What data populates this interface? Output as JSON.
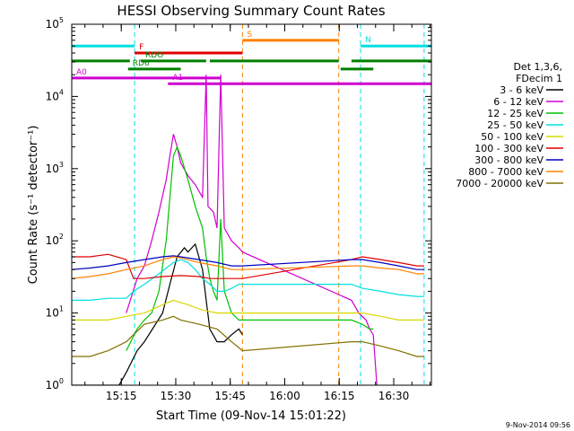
{
  "chart_data": {
    "type": "line",
    "title": "HESSI Observing Summary Count Rates",
    "xlabel": "Start Time (09-Nov-14 15:01:22)",
    "ylabel": "Count Rate (s⁻¹ detector⁻¹)",
    "yscale": "log",
    "xlim_min": [
      0,
      99
    ],
    "ylim": [
      1,
      100000
    ],
    "x_ticks": [
      {
        "min": 13.63,
        "label": "15:15"
      },
      {
        "min": 28.63,
        "label": "15:30"
      },
      {
        "min": 43.63,
        "label": "15:45"
      },
      {
        "min": 58.63,
        "label": "16:00"
      },
      {
        "min": 73.63,
        "label": "16:15"
      },
      {
        "min": 88.63,
        "label": "16:30"
      }
    ],
    "y_ticks": [
      {
        "value": 1,
        "base": "10",
        "exp": "0"
      },
      {
        "value": 10,
        "base": "10",
        "exp": "1"
      },
      {
        "value": 100,
        "base": "10",
        "exp": "2"
      },
      {
        "value": 1000,
        "base": "10",
        "exp": "3"
      },
      {
        "value": 10000,
        "base": "10",
        "exp": "4"
      },
      {
        "value": 100000,
        "base": "10",
        "exp": "5"
      }
    ],
    "legend": {
      "header": [
        "Det 1,3,6,",
        "FDecim 1"
      ],
      "placement": "right",
      "entries": [
        {
          "label": "3 - 6 keV",
          "color": "#000000"
        },
        {
          "label": "6 - 12 keV",
          "color": "#d000d0"
        },
        {
          "label": "12 - 25 keV",
          "color": "#00c000"
        },
        {
          "label": "25 - 50 keV",
          "color": "#00e0e0"
        },
        {
          "label": "50 - 100 keV",
          "color": "#d8d800"
        },
        {
          "label": "100 - 300 keV",
          "color": "#e00000"
        },
        {
          "label": "300 - 800 keV",
          "color": "#0000c0"
        },
        {
          "label": "800 - 7000 keV",
          "color": "#ff8000"
        },
        {
          "label": "7000 - 20000 keV",
          "color": "#807000"
        }
      ]
    },
    "flags": [
      {
        "label": "N",
        "y": 50000,
        "color": "#00e0e0",
        "segments": [
          [
            0,
            17.3
          ],
          [
            79.5,
            99
          ]
        ]
      },
      {
        "label": "S",
        "y": 60000,
        "color": "#ff8000",
        "segments": [
          [
            47,
            73.5
          ]
        ]
      },
      {
        "label": "F",
        "y": 40000,
        "color": "#e00000",
        "segments": [
          [
            17.3,
            47
          ]
        ]
      },
      {
        "label": "RDO",
        "y": 31000,
        "color": "#008000",
        "segments": [
          [
            0,
            16
          ],
          [
            19,
            37
          ],
          [
            38,
            73.5
          ],
          [
            77,
            99
          ]
        ]
      },
      {
        "label": "RD6",
        "y": 24000,
        "color": "#008000",
        "segments": [
          [
            15.5,
            30
          ],
          [
            74,
            83
          ]
        ]
      },
      {
        "label": "A0",
        "y": 18000,
        "color": "#d000d0",
        "segments": [
          [
            0,
            41
          ]
        ]
      },
      {
        "label": "A1",
        "y": 15000,
        "color": "#d000d0",
        "segments": [
          [
            26.5,
            99
          ]
        ]
      }
    ],
    "saa_lines_min": [
      17.3,
      47,
      73.5,
      79.5,
      97
    ],
    "night_lines_min": [
      15.5,
      79.5
    ],
    "series": [
      {
        "name": "3 - 6 keV",
        "color": "#000000",
        "points": [
          [
            0,
            1
          ],
          [
            10,
            1
          ],
          [
            13,
            1
          ],
          [
            15,
            1.5
          ],
          [
            18,
            3
          ],
          [
            20,
            4
          ],
          [
            25,
            10
          ],
          [
            27,
            25
          ],
          [
            29,
            60
          ],
          [
            31,
            80
          ],
          [
            32,
            70
          ],
          [
            34,
            90
          ],
          [
            36,
            40
          ],
          [
            37,
            15
          ],
          [
            38,
            6
          ],
          [
            40,
            4
          ],
          [
            42,
            4
          ],
          [
            44,
            5
          ],
          [
            46,
            6
          ],
          [
            47,
            5
          ]
        ]
      },
      {
        "name": "6 - 12 keV",
        "color": "#d000d0",
        "points": [
          [
            15,
            10
          ],
          [
            18,
            30
          ],
          [
            20,
            45
          ],
          [
            22,
            100
          ],
          [
            24,
            250
          ],
          [
            26,
            700
          ],
          [
            27,
            1500
          ],
          [
            28,
            3000
          ],
          [
            29,
            2000
          ],
          [
            30,
            1200
          ],
          [
            32,
            800
          ],
          [
            34,
            600
          ],
          [
            36,
            400
          ],
          [
            37,
            20000
          ],
          [
            37.5,
            300
          ],
          [
            39,
            250
          ],
          [
            40,
            150
          ],
          [
            41,
            20000
          ],
          [
            42,
            150
          ],
          [
            44,
            100
          ],
          [
            46,
            80
          ],
          [
            47,
            70
          ],
          [
            77,
            15
          ],
          [
            79,
            10
          ],
          [
            81,
            8
          ],
          [
            82,
            6
          ],
          [
            83,
            5
          ],
          [
            84,
            1
          ]
        ]
      },
      {
        "name": "12 - 25 keV",
        "color": "#00c000",
        "points": [
          [
            15,
            3
          ],
          [
            18,
            6
          ],
          [
            20,
            8
          ],
          [
            22,
            10
          ],
          [
            24,
            20
          ],
          [
            26,
            100
          ],
          [
            28,
            1500
          ],
          [
            29,
            2000
          ],
          [
            30,
            1500
          ],
          [
            32,
            700
          ],
          [
            34,
            300
          ],
          [
            36,
            150
          ],
          [
            37,
            60
          ],
          [
            38,
            30
          ],
          [
            39,
            20
          ],
          [
            40,
            15
          ],
          [
            41,
            200
          ],
          [
            42,
            20
          ],
          [
            44,
            10
          ],
          [
            46,
            8
          ],
          [
            47,
            8
          ],
          [
            77,
            8
          ],
          [
            80,
            7
          ],
          [
            82,
            6
          ],
          [
            83,
            6
          ]
        ]
      },
      {
        "name": "25 - 50 keV",
        "color": "#00e0e0",
        "points": [
          [
            0,
            15
          ],
          [
            5,
            15
          ],
          [
            10,
            16
          ],
          [
            15,
            16
          ],
          [
            17,
            20
          ],
          [
            20,
            25
          ],
          [
            24,
            35
          ],
          [
            28,
            50
          ],
          [
            30,
            55
          ],
          [
            32,
            50
          ],
          [
            34,
            40
          ],
          [
            36,
            30
          ],
          [
            38,
            25
          ],
          [
            40,
            20
          ],
          [
            42,
            20
          ],
          [
            44,
            22
          ],
          [
            46,
            25
          ],
          [
            47,
            25
          ],
          [
            77,
            25
          ],
          [
            80,
            22
          ],
          [
            85,
            20
          ],
          [
            90,
            18
          ],
          [
            95,
            17
          ],
          [
            97,
            17
          ]
        ]
      },
      {
        "name": "50 - 100 keV",
        "color": "#d8d800",
        "points": [
          [
            0,
            8
          ],
          [
            5,
            8
          ],
          [
            10,
            8
          ],
          [
            15,
            9
          ],
          [
            20,
            10
          ],
          [
            25,
            13
          ],
          [
            28,
            15
          ],
          [
            30,
            14
          ],
          [
            32,
            13
          ],
          [
            36,
            11
          ],
          [
            40,
            10
          ],
          [
            44,
            10
          ],
          [
            47,
            10
          ],
          [
            77,
            10
          ],
          [
            80,
            10
          ],
          [
            85,
            9
          ],
          [
            90,
            8
          ],
          [
            95,
            8
          ],
          [
            97,
            8
          ]
        ]
      },
      {
        "name": "100 - 300 keV",
        "color": "#e00000",
        "points": [
          [
            0,
            60
          ],
          [
            5,
            60
          ],
          [
            10,
            65
          ],
          [
            15,
            55
          ],
          [
            17,
            30
          ],
          [
            20,
            30
          ],
          [
            25,
            32
          ],
          [
            30,
            33
          ],
          [
            35,
            32
          ],
          [
            38,
            30
          ],
          [
            42,
            30
          ],
          [
            46,
            30
          ],
          [
            47,
            30
          ],
          [
            77,
            55
          ],
          [
            80,
            60
          ],
          [
            85,
            55
          ],
          [
            90,
            50
          ],
          [
            95,
            45
          ],
          [
            97,
            45
          ]
        ]
      },
      {
        "name": "300 - 800 keV",
        "color": "#0000c0",
        "points": [
          [
            0,
            40
          ],
          [
            5,
            42
          ],
          [
            10,
            45
          ],
          [
            15,
            50
          ],
          [
            20,
            55
          ],
          [
            25,
            60
          ],
          [
            28,
            62
          ],
          [
            30,
            60
          ],
          [
            35,
            55
          ],
          [
            40,
            50
          ],
          [
            44,
            45
          ],
          [
            47,
            45
          ],
          [
            77,
            55
          ],
          [
            80,
            55
          ],
          [
            85,
            50
          ],
          [
            90,
            45
          ],
          [
            95,
            40
          ],
          [
            97,
            40
          ]
        ]
      },
      {
        "name": "800 - 7000 keV",
        "color": "#ff8000",
        "points": [
          [
            0,
            30
          ],
          [
            5,
            32
          ],
          [
            10,
            35
          ],
          [
            15,
            40
          ],
          [
            20,
            45
          ],
          [
            25,
            55
          ],
          [
            28,
            60
          ],
          [
            30,
            58
          ],
          [
            35,
            50
          ],
          [
            40,
            45
          ],
          [
            44,
            40
          ],
          [
            47,
            40
          ],
          [
            77,
            45
          ],
          [
            80,
            45
          ],
          [
            85,
            42
          ],
          [
            90,
            40
          ],
          [
            95,
            35
          ],
          [
            97,
            35
          ]
        ]
      },
      {
        "name": "7000 - 20000 keV",
        "color": "#807000",
        "points": [
          [
            0,
            2.5
          ],
          [
            5,
            2.5
          ],
          [
            10,
            3
          ],
          [
            15,
            4
          ],
          [
            20,
            7
          ],
          [
            25,
            8
          ],
          [
            28,
            9
          ],
          [
            30,
            8
          ],
          [
            35,
            7
          ],
          [
            40,
            6
          ],
          [
            44,
            4
          ],
          [
            47,
            3
          ],
          [
            77,
            4
          ],
          [
            80,
            4
          ],
          [
            85,
            3.5
          ],
          [
            90,
            3
          ],
          [
            95,
            2.5
          ],
          [
            97,
            2.5
          ]
        ]
      }
    ]
  },
  "footer": {
    "timestamp": "9-Nov-2014 09:56"
  }
}
